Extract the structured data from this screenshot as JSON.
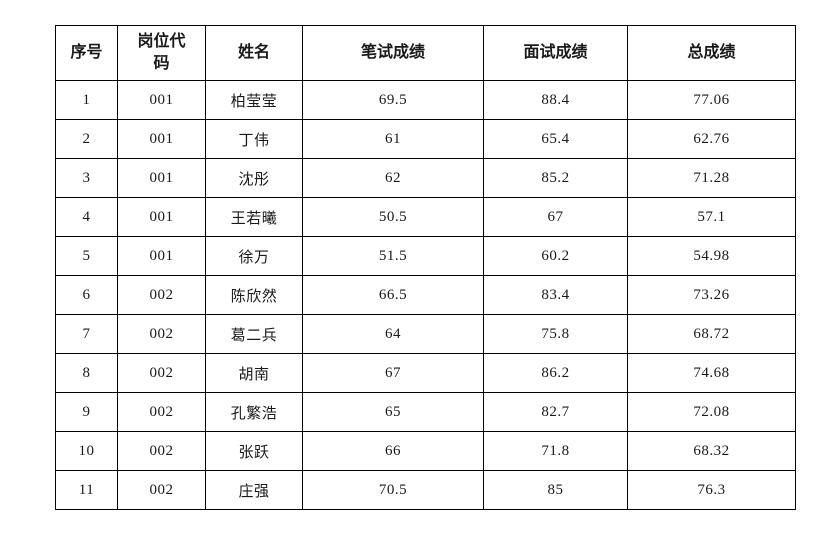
{
  "table": {
    "columns": [
      {
        "key": "index",
        "label": "序号"
      },
      {
        "key": "code",
        "label": "岗位代码"
      },
      {
        "key": "name",
        "label": "姓名"
      },
      {
        "key": "written",
        "label": "笔试成绩"
      },
      {
        "key": "interview",
        "label": "面试成绩"
      },
      {
        "key": "total",
        "label": "总成绩"
      }
    ],
    "rows": [
      {
        "index": "1",
        "code": "001",
        "name": "柏莹莹",
        "written": "69.5",
        "interview": "88.4",
        "total": "77.06"
      },
      {
        "index": "2",
        "code": "001",
        "name": "丁伟",
        "written": "61",
        "interview": "65.4",
        "total": "62.76"
      },
      {
        "index": "3",
        "code": "001",
        "name": "沈彤",
        "written": "62",
        "interview": "85.2",
        "total": "71.28"
      },
      {
        "index": "4",
        "code": "001",
        "name": "王若曦",
        "written": "50.5",
        "interview": "67",
        "total": "57.1"
      },
      {
        "index": "5",
        "code": "001",
        "name": "徐万",
        "written": "51.5",
        "interview": "60.2",
        "total": "54.98"
      },
      {
        "index": "6",
        "code": "002",
        "name": "陈欣然",
        "written": "66.5",
        "interview": "83.4",
        "total": "73.26"
      },
      {
        "index": "7",
        "code": "002",
        "name": "葛二兵",
        "written": "64",
        "interview": "75.8",
        "total": "68.72"
      },
      {
        "index": "8",
        "code": "002",
        "name": "胡南",
        "written": "67",
        "interview": "86.2",
        "total": "74.68"
      },
      {
        "index": "9",
        "code": "002",
        "name": "孔繁浩",
        "written": "65",
        "interview": "82.7",
        "total": "72.08"
      },
      {
        "index": "10",
        "code": "002",
        "name": "张跃",
        "written": "66",
        "interview": "71.8",
        "total": "68.32"
      },
      {
        "index": "11",
        "code": "002",
        "name": "庄强",
        "written": "70.5",
        "interview": "85",
        "total": "76.3"
      }
    ],
    "border_color": "#000000",
    "text_color": "#1a1a1a",
    "background_color": "#ffffff"
  }
}
